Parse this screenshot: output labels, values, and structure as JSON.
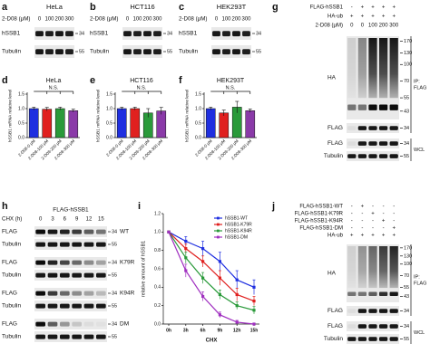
{
  "blots_abc": [
    {
      "label": "a",
      "title": "HeLa",
      "treatment": "2-D08 (μM)",
      "lanes": [
        "0",
        "100",
        "200",
        "300"
      ],
      "rows": [
        {
          "name": "hSSB1",
          "marker": "34"
        },
        {
          "name": "Tubulin",
          "marker": "55"
        }
      ]
    },
    {
      "label": "b",
      "title": "HCT116",
      "treatment": "2-D08 (μM)",
      "lanes": [
        "0",
        "100",
        "200",
        "300"
      ],
      "rows": [
        {
          "name": "hSSB1",
          "marker": "34"
        },
        {
          "name": "Tubulin",
          "marker": "55"
        }
      ]
    },
    {
      "label": "c",
      "title": "HEK293T",
      "treatment": "2-D08 (μM)",
      "lanes": [
        "0",
        "100",
        "200",
        "300"
      ],
      "rows": [
        {
          "name": "hSSB1",
          "marker": "34"
        },
        {
          "name": "Tubulin",
          "marker": "55"
        }
      ]
    }
  ],
  "blot_g": {
    "label": "g",
    "conditions": [
      {
        "name": "FLAG-hSSB1",
        "lanes": [
          "-",
          "+",
          "+",
          "+",
          "+"
        ]
      },
      {
        "name": "HA-ub",
        "lanes": [
          "+",
          "+",
          "+",
          "+",
          "+"
        ]
      },
      {
        "name": "2-D08 (μM)",
        "lanes": [
          "0",
          "0",
          "100",
          "200",
          "300"
        ]
      }
    ],
    "ip_rows": [
      {
        "name": "HA",
        "markers": [
          "170",
          "130",
          "100",
          "70",
          "55",
          "43"
        ]
      },
      {
        "name": "FLAG",
        "markers": [
          "34"
        ]
      }
    ],
    "ip_label": [
      "IP:",
      "FLAG"
    ],
    "wcl_rows": [
      {
        "name": "FLAG",
        "markers": [
          "34"
        ]
      },
      {
        "name": "Tubulin",
        "markers": [
          "55"
        ]
      }
    ],
    "wcl_label": "WCL"
  },
  "blot_h": {
    "label": "h",
    "construct": "FLAG-hSSB1",
    "treatment": "CHX (h)",
    "lanes": [
      "0",
      "3",
      "6",
      "9",
      "12",
      "15"
    ],
    "groups": [
      {
        "name": "WT",
        "rows": [
          {
            "name": "FLAG",
            "marker": "34"
          },
          {
            "name": "Tubulin",
            "marker": "55"
          }
        ]
      },
      {
        "name": "K79R",
        "rows": [
          {
            "name": "FLAG",
            "marker": "34"
          },
          {
            "name": "Tubulin",
            "marker": "55"
          }
        ]
      },
      {
        "name": "K94R",
        "rows": [
          {
            "name": "FLAG",
            "marker": "34"
          },
          {
            "name": "Tubulin",
            "marker": "55"
          }
        ]
      },
      {
        "name": "DM",
        "rows": [
          {
            "name": "FLAG",
            "marker": "34"
          },
          {
            "name": "Tubulin",
            "marker": "55"
          }
        ]
      }
    ]
  },
  "blot_j": {
    "label": "j",
    "conditions": [
      {
        "name": "FLAG-hSSB1-WT",
        "lanes": [
          "-",
          "+",
          "-",
          "-",
          "-"
        ]
      },
      {
        "name": "FLAG-hSSB1-K79R",
        "lanes": [
          "-",
          "-",
          "+",
          "-",
          "-"
        ]
      },
      {
        "name": "FLAG-hSSB1-K94R",
        "lanes": [
          "-",
          "-",
          "-",
          "+",
          "-"
        ]
      },
      {
        "name": "FLAG-hSSB1-DM",
        "lanes": [
          "-",
          "-",
          "-",
          "-",
          "+"
        ]
      },
      {
        "name": "HA-ub",
        "lanes": [
          "+",
          "+",
          "+",
          "+",
          "+"
        ]
      }
    ],
    "ip_rows": [
      {
        "name": "HA",
        "markers": [
          "170",
          "130",
          "100",
          "70",
          "55",
          "43"
        ]
      },
      {
        "name": "FLAG",
        "markers": [
          "34"
        ]
      }
    ],
    "ip_label": [
      "IP:",
      "FLAG"
    ],
    "wcl_rows": [
      {
        "name": "FLAG",
        "markers": [
          "34"
        ]
      },
      {
        "name": "Tubulin",
        "markers": [
          "55"
        ]
      }
    ],
    "wcl_label": "WCL"
  },
  "chart_data": [
    {
      "type": "bar",
      "label": "d",
      "title": "HeLa",
      "y_label": "hSSB1 mRNA relative level",
      "annotation": "N.S.",
      "categories": [
        "2-D08-0 μM",
        "2-D08-100 μM",
        "2-D08-200 μM",
        "2-D08-300 μM"
      ],
      "values": [
        1.0,
        0.98,
        1.0,
        0.93
      ],
      "errors": [
        0.05,
        0.06,
        0.05,
        0.05
      ],
      "colors": [
        "#1f2fe0",
        "#e0201f",
        "#2a9a3a",
        "#8a3aa8"
      ],
      "ylim": [
        0,
        1.5
      ],
      "yticks": [
        {
          "value": 0,
          "label": "0.0"
        },
        {
          "value": 0.5,
          "label": "0.5"
        },
        {
          "value": 1,
          "label": "1.0"
        },
        {
          "value": 1.5,
          "label": "1.5"
        }
      ]
    },
    {
      "type": "bar",
      "label": "e",
      "title": "HCT116",
      "y_label": "hSSB1 mRNA relative level",
      "annotation": "N.S.",
      "categories": [
        "2-D08-0 μM",
        "2-D08-100 μM",
        "2-D08-200 μM",
        "2-D08-300 μM"
      ],
      "values": [
        1.0,
        1.0,
        0.85,
        0.92
      ],
      "errors": [
        0.05,
        0.05,
        0.15,
        0.12
      ],
      "colors": [
        "#1f2fe0",
        "#e0201f",
        "#2a9a3a",
        "#8a3aa8"
      ],
      "ylim": [
        0,
        1.5
      ],
      "yticks": [
        {
          "value": 0,
          "label": "0.0"
        },
        {
          "value": 0.5,
          "label": "0.5"
        },
        {
          "value": 1,
          "label": "1.0"
        },
        {
          "value": 1.5,
          "label": "1.5"
        }
      ]
    },
    {
      "type": "bar",
      "label": "f",
      "title": "HEK293T",
      "y_label": "hSSB1 mRNA relative level",
      "annotation": "N.S.",
      "categories": [
        "2-D08-0 μM",
        "2-D08-100 μM",
        "2-D08-200 μM",
        "2-D08-300 μM"
      ],
      "values": [
        1.0,
        0.85,
        1.05,
        0.93
      ],
      "errors": [
        0.05,
        0.1,
        0.2,
        0.06
      ],
      "colors": [
        "#1f2fe0",
        "#e0201f",
        "#2a9a3a",
        "#8a3aa8"
      ],
      "ylim": [
        0,
        1.5
      ],
      "yticks": [
        {
          "value": 0,
          "label": "0.0"
        },
        {
          "value": 0.5,
          "label": "0.5"
        },
        {
          "value": 1,
          "label": "1.0"
        },
        {
          "value": 1.5,
          "label": "1.5"
        }
      ]
    },
    {
      "type": "line",
      "label": "i",
      "x_label": "CHX",
      "y_label": "relative amount of hSSB1",
      "categories": [
        "0h",
        "3h",
        "6h",
        "9h",
        "12h",
        "15h"
      ],
      "series": [
        {
          "name": "hSSB1-WT",
          "color": "#1f2fe0",
          "values": [
            1.0,
            0.9,
            0.82,
            0.68,
            0.48,
            0.4
          ],
          "errors": [
            0,
            0.05,
            0.08,
            0.1,
            0.1,
            0.08
          ]
        },
        {
          "name": "hSSB1-K79R",
          "color": "#e0201f",
          "values": [
            1.0,
            0.82,
            0.68,
            0.5,
            0.32,
            0.25
          ],
          "errors": [
            0,
            0.05,
            0.06,
            0.08,
            0.07,
            0.05
          ]
        },
        {
          "name": "hSSB1-K94R",
          "color": "#2a9a3a",
          "values": [
            1.0,
            0.72,
            0.5,
            0.32,
            0.2,
            0.15
          ],
          "errors": [
            0,
            0.06,
            0.06,
            0.05,
            0.04,
            0.04
          ]
        },
        {
          "name": "hSSB1-DM",
          "color": "#a030c0",
          "values": [
            1.0,
            0.58,
            0.3,
            0.1,
            0.02,
            0.0
          ],
          "errors": [
            0,
            0.07,
            0.05,
            0.03,
            0.02,
            0.01
          ]
        }
      ],
      "ylim": [
        0,
        1.2
      ],
      "yticks": [
        {
          "value": 0,
          "label": "0.0"
        },
        {
          "value": 0.2,
          "label": "0.2"
        },
        {
          "value": 0.4,
          "label": "0.4"
        },
        {
          "value": 0.6,
          "label": "0.6"
        },
        {
          "value": 0.8,
          "label": "0.8"
        },
        {
          "value": 1,
          "label": "1.0"
        },
        {
          "value": 1.2,
          "label": "1.2"
        }
      ]
    }
  ]
}
